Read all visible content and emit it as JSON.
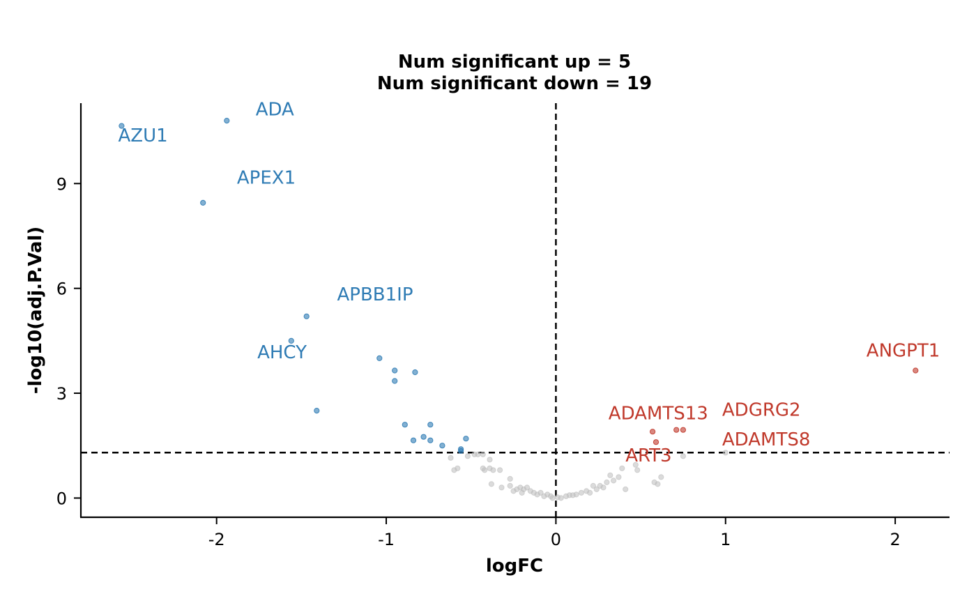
{
  "chart_data": {
    "type": "scatter",
    "title": "Num significant up = 5",
    "subtitle": "Num significant down = 19",
    "xlabel": "logFC",
    "ylabel": "-log10(adj.P.Val)",
    "xlim": [
      -2.8,
      2.32
    ],
    "ylim": [
      -0.55,
      11.3
    ],
    "xticks": [
      -2,
      -1,
      0,
      1,
      2
    ],
    "xtick_labels": [
      "-2",
      "-1",
      "0",
      "1",
      "2"
    ],
    "yticks": [
      0,
      3,
      6,
      9
    ],
    "ytick_labels": [
      "0",
      "3",
      "6",
      "9"
    ],
    "grid": false,
    "legend": "none",
    "reference_lines": {
      "vertical_x": 0,
      "horizontal_y": 1.3
    },
    "colors": {
      "up": "#c0392b",
      "down": "#2e7bb4",
      "ns": "#bdbdbd",
      "line": "#000000"
    },
    "series": [
      {
        "group": "down",
        "color": "#2e7bb4",
        "points": [
          [
            -2.56,
            10.65
          ],
          [
            -1.94,
            10.8
          ],
          [
            -2.08,
            8.45
          ],
          [
            -1.47,
            5.2
          ],
          [
            -1.56,
            4.5
          ],
          [
            -1.41,
            2.5
          ],
          [
            -1.04,
            4.0
          ],
          [
            -0.95,
            3.65
          ],
          [
            -0.95,
            3.35
          ],
          [
            -0.83,
            3.6
          ],
          [
            -0.89,
            2.1
          ],
          [
            -0.74,
            2.1
          ],
          [
            -0.78,
            1.75
          ],
          [
            -0.84,
            1.65
          ],
          [
            -0.74,
            1.65
          ],
          [
            -0.53,
            1.7
          ],
          [
            -0.67,
            1.5
          ],
          [
            -0.56,
            1.4
          ],
          [
            -0.56,
            1.35
          ]
        ]
      },
      {
        "group": "up",
        "color": "#c0392b",
        "points": [
          [
            2.12,
            3.65
          ],
          [
            0.57,
            1.9
          ],
          [
            0.71,
            1.95
          ],
          [
            0.75,
            1.95
          ],
          [
            0.59,
            1.6
          ]
        ]
      },
      {
        "group": "ns",
        "color": "#bdbdbd",
        "points": [
          [
            -0.62,
            1.15
          ],
          [
            -0.6,
            0.8
          ],
          [
            -0.58,
            0.85
          ],
          [
            -0.52,
            1.2
          ],
          [
            -0.48,
            1.25
          ],
          [
            -0.46,
            1.25
          ],
          [
            -0.43,
            1.25
          ],
          [
            -0.43,
            0.85
          ],
          [
            -0.42,
            0.8
          ],
          [
            -0.39,
            0.85
          ],
          [
            -0.39,
            1.1
          ],
          [
            -0.37,
            0.8
          ],
          [
            -0.33,
            0.8
          ],
          [
            -0.38,
            0.4
          ],
          [
            -0.32,
            0.3
          ],
          [
            -0.27,
            0.55
          ],
          [
            -0.27,
            0.35
          ],
          [
            -0.25,
            0.2
          ],
          [
            -0.23,
            0.25
          ],
          [
            -0.21,
            0.3
          ],
          [
            -0.2,
            0.15
          ],
          [
            -0.19,
            0.25
          ],
          [
            -0.17,
            0.3
          ],
          [
            -0.15,
            0.2
          ],
          [
            -0.13,
            0.15
          ],
          [
            -0.11,
            0.1
          ],
          [
            -0.09,
            0.15
          ],
          [
            -0.07,
            0.05
          ],
          [
            -0.05,
            0.1
          ],
          [
            -0.03,
            0.05
          ],
          [
            -0.02,
            0.0
          ],
          [
            0.01,
            0.02
          ],
          [
            0.03,
            0.0
          ],
          [
            0.06,
            0.05
          ],
          [
            0.08,
            0.08
          ],
          [
            0.1,
            0.08
          ],
          [
            0.12,
            0.1
          ],
          [
            0.15,
            0.15
          ],
          [
            0.18,
            0.2
          ],
          [
            0.2,
            0.15
          ],
          [
            0.22,
            0.35
          ],
          [
            0.24,
            0.25
          ],
          [
            0.26,
            0.35
          ],
          [
            0.28,
            0.3
          ],
          [
            0.3,
            0.45
          ],
          [
            0.32,
            0.65
          ],
          [
            0.34,
            0.5
          ],
          [
            0.37,
            0.6
          ],
          [
            0.39,
            0.85
          ],
          [
            0.41,
            0.25
          ],
          [
            0.47,
            0.95
          ],
          [
            0.48,
            0.8
          ],
          [
            0.58,
            0.45
          ],
          [
            0.6,
            0.4
          ],
          [
            0.62,
            0.6
          ],
          [
            0.75,
            1.2
          ],
          [
            1.0,
            1.3
          ]
        ]
      }
    ],
    "annotations": [
      {
        "text": "AZU1",
        "group": "down",
        "x": -2.58,
        "y": 10.2
      },
      {
        "text": "ADA",
        "group": "down",
        "x": -1.77,
        "y": 10.95
      },
      {
        "text": "APEX1",
        "group": "down",
        "x": -1.88,
        "y": 9.0
      },
      {
        "text": "APBB1IP",
        "group": "down",
        "x": -1.29,
        "y": 5.65
      },
      {
        "text": "AHCY",
        "group": "down",
        "x": -1.76,
        "y": 4.0
      },
      {
        "text": "ANGPT1",
        "group": "up",
        "x": 1.83,
        "y": 4.05
      },
      {
        "text": "ADAMTS13",
        "group": "up",
        "x": 0.31,
        "y": 2.25
      },
      {
        "text": "ADGRG2",
        "group": "up",
        "x": 0.98,
        "y": 2.35
      },
      {
        "text": "ADAMTS8",
        "group": "up",
        "x": 0.98,
        "y": 1.5
      },
      {
        "text": "ART3",
        "group": "up",
        "x": 0.41,
        "y": 1.05
      }
    ]
  }
}
